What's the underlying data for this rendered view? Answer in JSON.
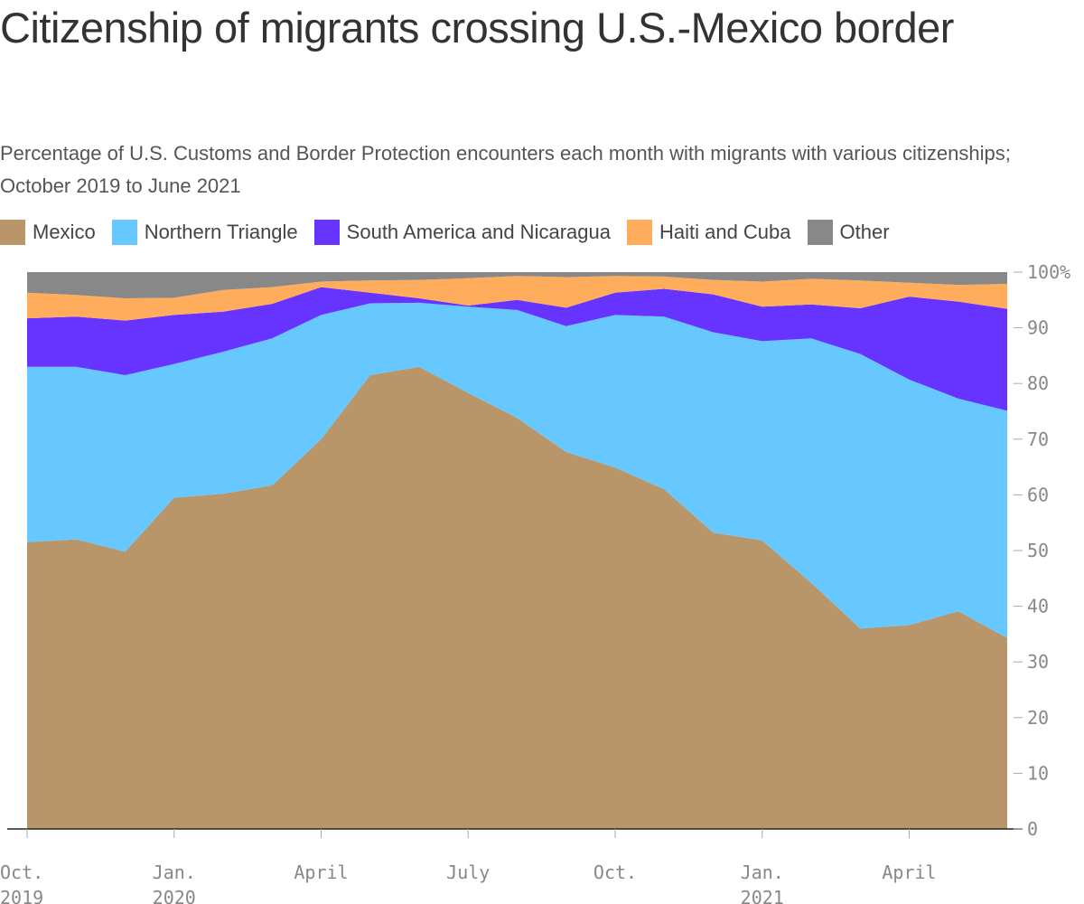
{
  "chart_data": {
    "type": "area",
    "stacked": true,
    "title": "Citizenship of migrants crossing U.S.-Mexico border",
    "subtitle": "Percentage of U.S. Customs and Border Protection encounters each month with migrants with various citizenships; October 2019 to June 2021",
    "x": [
      "2019-10",
      "2019-11",
      "2019-12",
      "2020-01",
      "2020-02",
      "2020-03",
      "2020-04",
      "2020-05",
      "2020-06",
      "2020-07",
      "2020-08",
      "2020-09",
      "2020-10",
      "2020-11",
      "2020-12",
      "2021-01",
      "2021-02",
      "2021-03",
      "2021-04",
      "2021-05",
      "2021-06"
    ],
    "x_tick_labels": [
      {
        "x": "2019-10",
        "line1": "Oct.",
        "line2": "2019"
      },
      {
        "x": "2020-01",
        "line1": "Jan.",
        "line2": "2020"
      },
      {
        "x": "2020-04",
        "line1": "April",
        "line2": ""
      },
      {
        "x": "2020-07",
        "line1": "July",
        "line2": ""
      },
      {
        "x": "2020-10",
        "line1": "Oct.",
        "line2": ""
      },
      {
        "x": "2021-01",
        "line1": "Jan.",
        "line2": "2021"
      },
      {
        "x": "2021-04",
        "line1": "April",
        "line2": ""
      }
    ],
    "ylim": [
      0,
      100
    ],
    "y_ticks": [
      0,
      10,
      20,
      30,
      40,
      50,
      60,
      70,
      80,
      90,
      100
    ],
    "y_tick_labels": [
      "0",
      "10",
      "20",
      "30",
      "40",
      "50",
      "60",
      "70",
      "80",
      "90",
      "100%"
    ],
    "y_axis_side": "right",
    "grid": false,
    "legend_position": "top-left",
    "series": [
      {
        "name": "Mexico",
        "color": "#b8966a",
        "values": [
          51.5,
          52.0,
          49.8,
          59.5,
          60.2,
          61.7,
          70.0,
          81.5,
          83.0,
          78.3,
          73.8,
          67.7,
          64.9,
          61.0,
          53.2,
          51.8,
          44.2,
          36.0,
          36.6,
          39.1,
          34.3
        ]
      },
      {
        "name": "Northern Triangle",
        "color": "#66c8ff",
        "values": [
          31.5,
          31.0,
          31.7,
          24.0,
          25.5,
          26.4,
          22.3,
          12.9,
          11.5,
          15.5,
          19.4,
          22.6,
          27.4,
          31.0,
          36.0,
          35.8,
          43.9,
          49.3,
          44.1,
          38.2,
          40.8
        ]
      },
      {
        "name": "South America and Nicaragua",
        "color": "#6633ff",
        "values": [
          8.7,
          9.0,
          9.8,
          8.8,
          7.2,
          6.2,
          5.0,
          1.9,
          0.8,
          0.2,
          1.8,
          3.3,
          4.0,
          5.0,
          6.8,
          6.2,
          6.1,
          8.2,
          14.9,
          17.4,
          18.3
        ]
      },
      {
        "name": "Haiti and Cuba",
        "color": "#ffad5c",
        "values": [
          4.6,
          3.9,
          4.0,
          3.1,
          3.9,
          3.0,
          1.0,
          2.2,
          3.3,
          4.9,
          4.3,
          5.5,
          3.0,
          2.2,
          2.6,
          4.5,
          4.6,
          5.0,
          2.5,
          3.0,
          4.5
        ]
      },
      {
        "name": "Other",
        "color": "#888888",
        "values": [
          3.7,
          4.1,
          4.7,
          4.6,
          3.2,
          2.7,
          1.7,
          1.5,
          1.4,
          1.1,
          0.7,
          0.9,
          0.7,
          0.8,
          1.4,
          1.7,
          1.2,
          1.5,
          1.9,
          2.3,
          2.1
        ]
      }
    ]
  }
}
